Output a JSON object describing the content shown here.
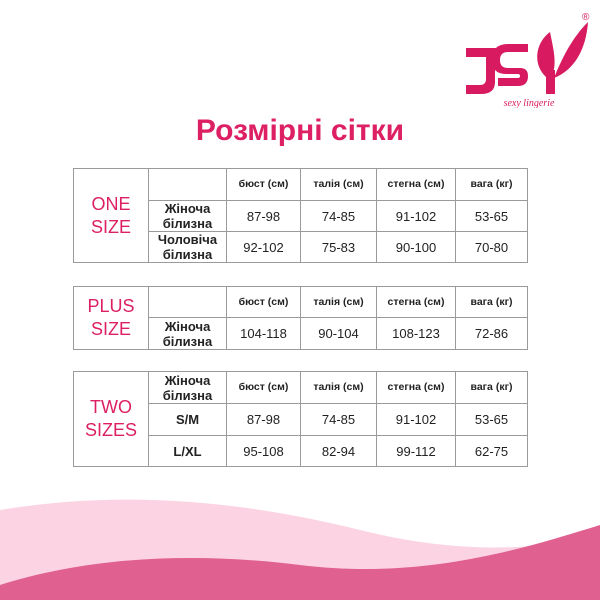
{
  "brand": {
    "name": "JSY",
    "tagline": "sexy lingerie",
    "registered": "®",
    "color": "#d81b60"
  },
  "title": "Розмірні сітки",
  "headers": [
    "бюст (см)",
    "талія (см)",
    "стегна (см)",
    "вага (кг)"
  ],
  "tables": [
    {
      "size_line1": "ONE",
      "size_line2": "SIZE",
      "rows": [
        {
          "label": "Жіноча білизна",
          "values": [
            "87-98",
            "74-85",
            "91-102",
            "53-65"
          ]
        },
        {
          "label": "Чоловіча білизна",
          "values": [
            "92-102",
            "75-83",
            "90-100",
            "70-80"
          ]
        }
      ]
    },
    {
      "size_line1": "PLUS",
      "size_line2": "SIZE",
      "rows": [
        {
          "label": "Жіноча білизна",
          "values": [
            "104-118",
            "90-104",
            "108-123",
            "72-86"
          ]
        }
      ]
    },
    {
      "size_line1": "TWO",
      "size_line2": "SIZES",
      "corner_label": "Жіноча білизна",
      "rows": [
        {
          "label": "S/M",
          "values": [
            "87-98",
            "74-85",
            "91-102",
            "53-65"
          ]
        },
        {
          "label": "L/XL",
          "values": [
            "95-108",
            "82-94",
            "99-112",
            "62-75"
          ]
        }
      ]
    }
  ],
  "colors": {
    "accent": "#dd1f63",
    "wave_light": "#fbd3e3",
    "wave_dark": "#e0608f"
  }
}
